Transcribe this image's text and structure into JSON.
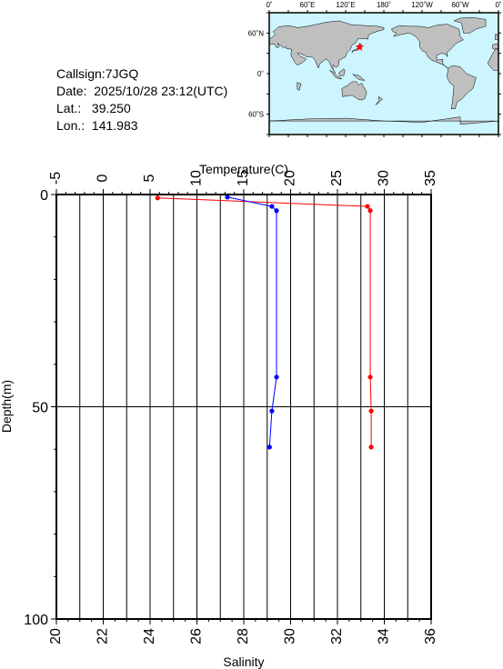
{
  "station": {
    "callsign": "Callsign:7JGQ",
    "date": "Date:  2025/10/28 23:12(UTC)",
    "lat": "Lat.:   39.250",
    "lon": "Lon.:  141.983"
  },
  "map": {
    "top_labels": [
      "0˚",
      "60˚E",
      "120˚E",
      "180˚",
      "120˚W",
      "60˚W",
      "0˚"
    ],
    "left_labels": [
      "60˚N",
      "0˚",
      "60˚S"
    ],
    "ocean_color": "#ccf5ff",
    "land_color": "#bfbfbf",
    "marker_color": "#ff0000",
    "marker": {
      "lon": 141.983,
      "lat": 39.25
    }
  },
  "chart_data": {
    "type": "line",
    "title": "",
    "top_axis": {
      "label": "Temperature(C)",
      "range": [
        -5,
        35
      ],
      "ticks": [
        "-5",
        "0",
        "5",
        "10",
        "15",
        "20",
        "25",
        "30",
        "35"
      ]
    },
    "bottom_axis": {
      "label": "Salinity",
      "range": [
        20,
        36
      ],
      "ticks": [
        "20",
        "22",
        "24",
        "26",
        "28",
        "30",
        "32",
        "34",
        "36"
      ]
    },
    "left_axis": {
      "label": "Depth(m)",
      "range": [
        0,
        100
      ],
      "inverted": true,
      "ticks": [
        "0",
        "50",
        "100"
      ]
    },
    "series": [
      {
        "name": "Temperature",
        "axis": "top",
        "color": "#ff0000",
        "points": [
          {
            "x": 5.8,
            "depth": 0.8
          },
          {
            "x": 28.2,
            "depth": 2.8
          },
          {
            "x": 28.5,
            "depth": 3.8
          },
          {
            "x": 28.5,
            "depth": 43
          },
          {
            "x": 28.6,
            "depth": 51
          },
          {
            "x": 28.6,
            "depth": 59.5
          }
        ]
      },
      {
        "name": "Salinity",
        "axis": "bottom",
        "color": "#0000ff",
        "points": [
          {
            "x": 27.3,
            "depth": 0.6
          },
          {
            "x": 29.2,
            "depth": 2.8
          },
          {
            "x": 29.4,
            "depth": 3.8
          },
          {
            "x": 29.4,
            "depth": 43
          },
          {
            "x": 29.2,
            "depth": 51
          },
          {
            "x": 29.1,
            "depth": 59.5
          }
        ]
      }
    ],
    "grid": {
      "vertical": true,
      "horizontal_at": [
        50
      ]
    },
    "legend": "none"
  }
}
